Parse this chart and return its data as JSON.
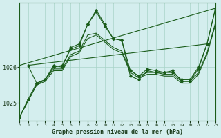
{
  "title": "Graphe pression niveau de la mer (hPa)",
  "background_color": "#d4eeee",
  "grid_color": "#a8d4c8",
  "line_color": "#1a5c1a",
  "label_color": "#1a3a1a",
  "xlim": [
    0,
    23
  ],
  "ylim": [
    1024.5,
    1027.8
  ],
  "yticks": [
    1025,
    1026
  ],
  "xticks": [
    0,
    1,
    2,
    3,
    4,
    5,
    6,
    7,
    8,
    9,
    10,
    11,
    12,
    13,
    14,
    15,
    16,
    17,
    18,
    19,
    20,
    21,
    22,
    23
  ],
  "jagged_line": {
    "x": [
      0,
      1,
      2,
      3,
      4,
      5,
      6,
      7,
      8,
      9,
      10,
      11,
      12,
      13,
      14,
      15,
      16,
      17,
      18,
      19,
      20,
      21,
      22,
      23
    ],
    "y": [
      1024.6,
      1025.1,
      1025.55,
      1025.65,
      1026.0,
      1026.05,
      1026.5,
      1026.6,
      1027.2,
      1027.55,
      1027.15,
      1026.8,
      1026.75,
      1025.9,
      1025.75,
      1025.95,
      1025.9,
      1025.85,
      1025.85,
      1025.65,
      1025.65,
      1026.0,
      1026.65,
      1027.65
    ]
  },
  "volatile_line": {
    "x": [
      1,
      2,
      3,
      4,
      5,
      6,
      7,
      8,
      9,
      10,
      11,
      12,
      13,
      14,
      15,
      16,
      17,
      18,
      19,
      20,
      21,
      22,
      23
    ],
    "y": [
      1026.05,
      1025.55,
      1025.65,
      1026.05,
      1026.0,
      1026.55,
      1026.65,
      1027.2,
      1027.6,
      1027.2,
      1026.8,
      1026.75,
      1025.75,
      1025.65,
      1025.9,
      1025.85,
      1025.85,
      1025.9,
      1025.6,
      1025.6,
      1025.95,
      1026.65,
      1027.65
    ]
  },
  "trend_line1": {
    "x": [
      0,
      23
    ],
    "y": [
      1026.05,
      1027.65
    ]
  },
  "trend_line2": {
    "x": [
      1,
      22
    ],
    "y": [
      1026.05,
      1026.65
    ]
  },
  "smooth_line1": {
    "x": [
      0,
      1,
      2,
      3,
      4,
      5,
      6,
      7,
      8,
      9,
      10,
      11,
      12,
      13,
      14,
      15,
      16,
      17,
      18,
      19,
      20,
      21,
      22,
      23
    ],
    "y": [
      1024.6,
      1025.05,
      1025.5,
      1025.65,
      1025.95,
      1025.95,
      1026.35,
      1026.45,
      1026.9,
      1026.95,
      1026.75,
      1026.55,
      1026.45,
      1025.9,
      1025.75,
      1025.85,
      1025.85,
      1025.8,
      1025.8,
      1025.6,
      1025.6,
      1025.85,
      1026.4,
      1027.25
    ]
  },
  "smooth_line2": {
    "x": [
      0,
      1,
      2,
      3,
      4,
      5,
      6,
      7,
      8,
      9,
      10,
      11,
      12,
      13,
      14,
      15,
      16,
      17,
      18,
      19,
      20,
      21,
      22,
      23
    ],
    "y": [
      1024.6,
      1025.05,
      1025.5,
      1025.6,
      1025.9,
      1025.9,
      1026.3,
      1026.4,
      1026.8,
      1026.9,
      1026.7,
      1026.5,
      1026.4,
      1025.85,
      1025.7,
      1025.8,
      1025.8,
      1025.75,
      1025.75,
      1025.55,
      1025.55,
      1025.8,
      1026.35,
      1027.2
    ]
  }
}
